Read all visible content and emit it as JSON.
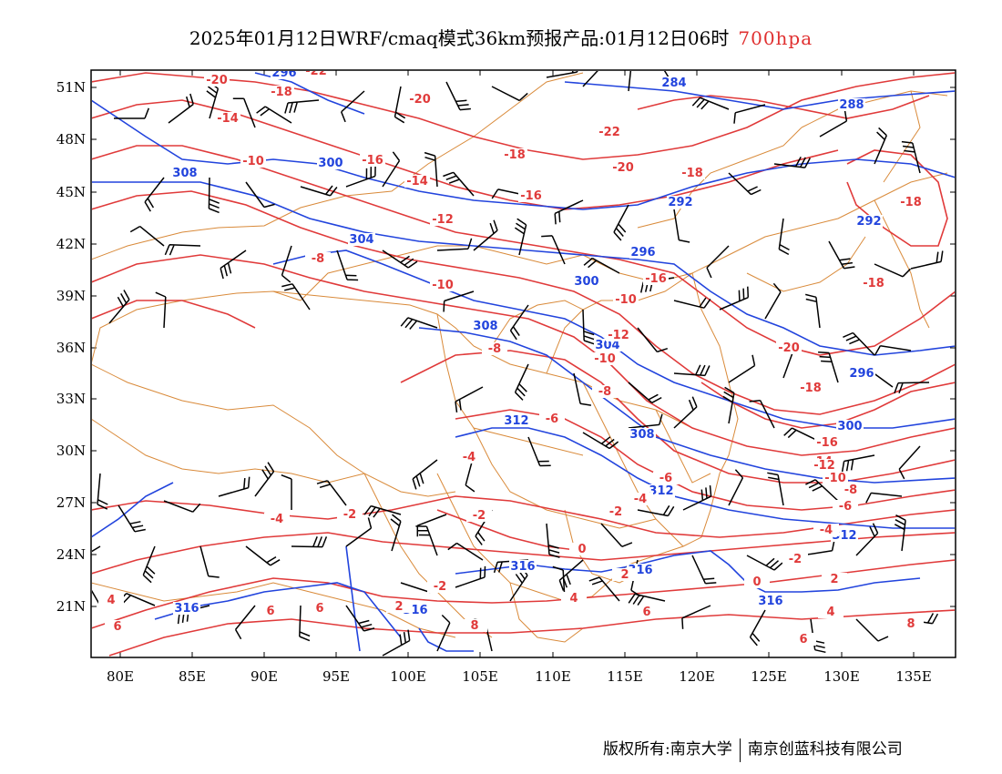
{
  "title": {
    "main": "2025年01月12日WRF/cmaq模式36km预报产品:01月12日06时",
    "level": "700hpa"
  },
  "axes": {
    "lat_labels": [
      "51N",
      "48N",
      "45N",
      "42N",
      "39N",
      "36N",
      "33N",
      "30N",
      "27N",
      "24N",
      "21N"
    ],
    "lon_labels": [
      "80E",
      "85E",
      "90E",
      "95E",
      "100E",
      "105E",
      "110E",
      "115E",
      "120E",
      "125E",
      "130E",
      "135E"
    ]
  },
  "colors": {
    "temperature": "#e03a3a",
    "geopotential": "#2244dd",
    "border": "#d98a3a",
    "wind": "#000000"
  },
  "contour_labels": {
    "geopotential": [
      "296",
      "284",
      "288",
      "300",
      "308",
      "292",
      "292",
      "304",
      "296",
      "300",
      "308",
      "304",
      "296",
      "312",
      "308",
      "300",
      "312",
      "312",
      "316",
      "316",
      "316",
      "316",
      "316"
    ],
    "temperature": [
      "-22",
      "-20",
      "-18",
      "-20",
      "-14",
      "-16",
      "-10",
      "-14",
      "-22",
      "-18",
      "-20",
      "-16",
      "-18",
      "-12",
      "-18",
      "-8",
      "-10",
      "-16",
      "-18",
      "-10",
      "-12",
      "-20",
      "-8",
      "-10",
      "-6",
      "-8",
      "-18",
      "-6",
      "-16",
      "-4",
      "-14",
      "-12",
      "-10",
      "-8",
      "-6",
      "-4",
      "-2",
      "-2",
      "-4",
      "-2",
      "-4",
      "-2",
      "0",
      "2",
      "-2",
      "0",
      "2",
      "4",
      "2",
      "4",
      "6",
      "6",
      "4",
      "6",
      "8",
      "6",
      "6",
      "8"
    ]
  },
  "footer": {
    "left": "版权所有:南京大学",
    "right": "南京创蓝科技有限公司"
  }
}
